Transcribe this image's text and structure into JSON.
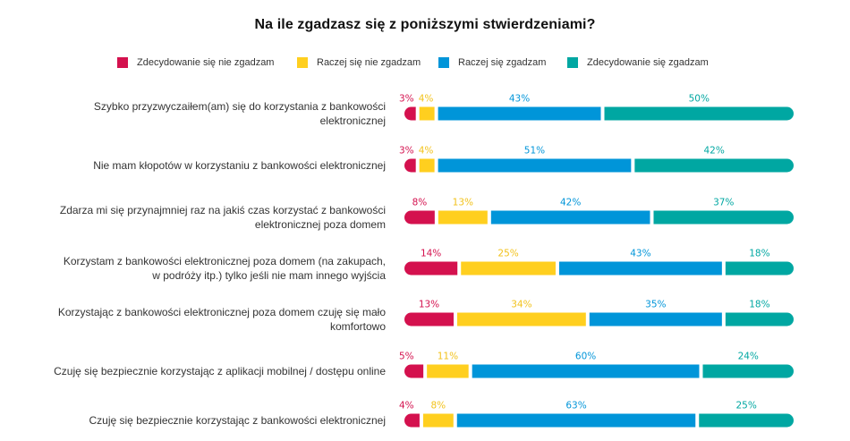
{
  "chart_data": {
    "type": "bar",
    "orientation": "horizontal",
    "stacked": true,
    "normalized": true,
    "title": "Na ile zgadzasz się z poniższymi stwierdzeniami?",
    "xlabel": "",
    "ylabel": "",
    "legend_position": "top",
    "grid": false,
    "value_suffix": "%",
    "categories": [
      "Szybko przyzwyczaiłem(am) się do korzystania z bankowości elektronicznej",
      "Nie mam kłopotów w korzystaniu z bankowości elektronicznej",
      "Zdarza mi się przynajmniej raz na jakiś czas korzystać z bankowości elektronicznej poza domem",
      "Korzystam z bankowości elektronicznej poza domem (na zakupach, w podróży itp.) tylko jeśli nie mam innego wyjścia",
      "Korzystając z bankowości elektronicznej poza domem czuję się mało komfortowo",
      "Czuję się bezpiecznie korzystając z aplikacji mobilnej / dostępu online",
      "Czuję się bezpiecznie korzystając z bankowości elektronicznej"
    ],
    "category_lines": [
      [
        "Szybko przyzwyczaiłem(am) się do korzystania z bankowości",
        "elektronicznej"
      ],
      [
        "Nie mam kłopotów w korzystaniu z bankowości elektronicznej"
      ],
      [
        "Zdarza mi się przynajmniej raz na jakiś czas korzystać z bankowości",
        "elektronicznej poza domem"
      ],
      [
        "Korzystam z bankowości elektronicznej poza domem (na zakupach,",
        "w podróży itp.) tylko jeśli nie mam innego wyjścia"
      ],
      [
        "Korzystając z bankowości elektronicznej poza domem czuję się mało",
        "komfortowo"
      ],
      [
        "Czuję się bezpiecznie korzystając z aplikacji mobilnej / dostępu online"
      ],
      [
        "Czuję się bezpiecznie korzystając z bankowości elektronicznej"
      ]
    ],
    "series": [
      {
        "name": "Zdecydowanie się nie zgadzam",
        "color": "#d4114e",
        "values": [
          3,
          3,
          8,
          14,
          13,
          5,
          4
        ]
      },
      {
        "name": "Raczej się nie zgadzam",
        "color": "#ffcf1f",
        "values": [
          4,
          4,
          13,
          25,
          34,
          11,
          8
        ]
      },
      {
        "name": "Raczej się zgadzam",
        "color": "#0095d9",
        "values": [
          43,
          51,
          42,
          43,
          35,
          60,
          63
        ]
      },
      {
        "name": "Zdecydowanie się zgadzam",
        "color": "#00a7a2",
        "values": [
          50,
          42,
          37,
          18,
          18,
          24,
          25
        ]
      }
    ]
  }
}
